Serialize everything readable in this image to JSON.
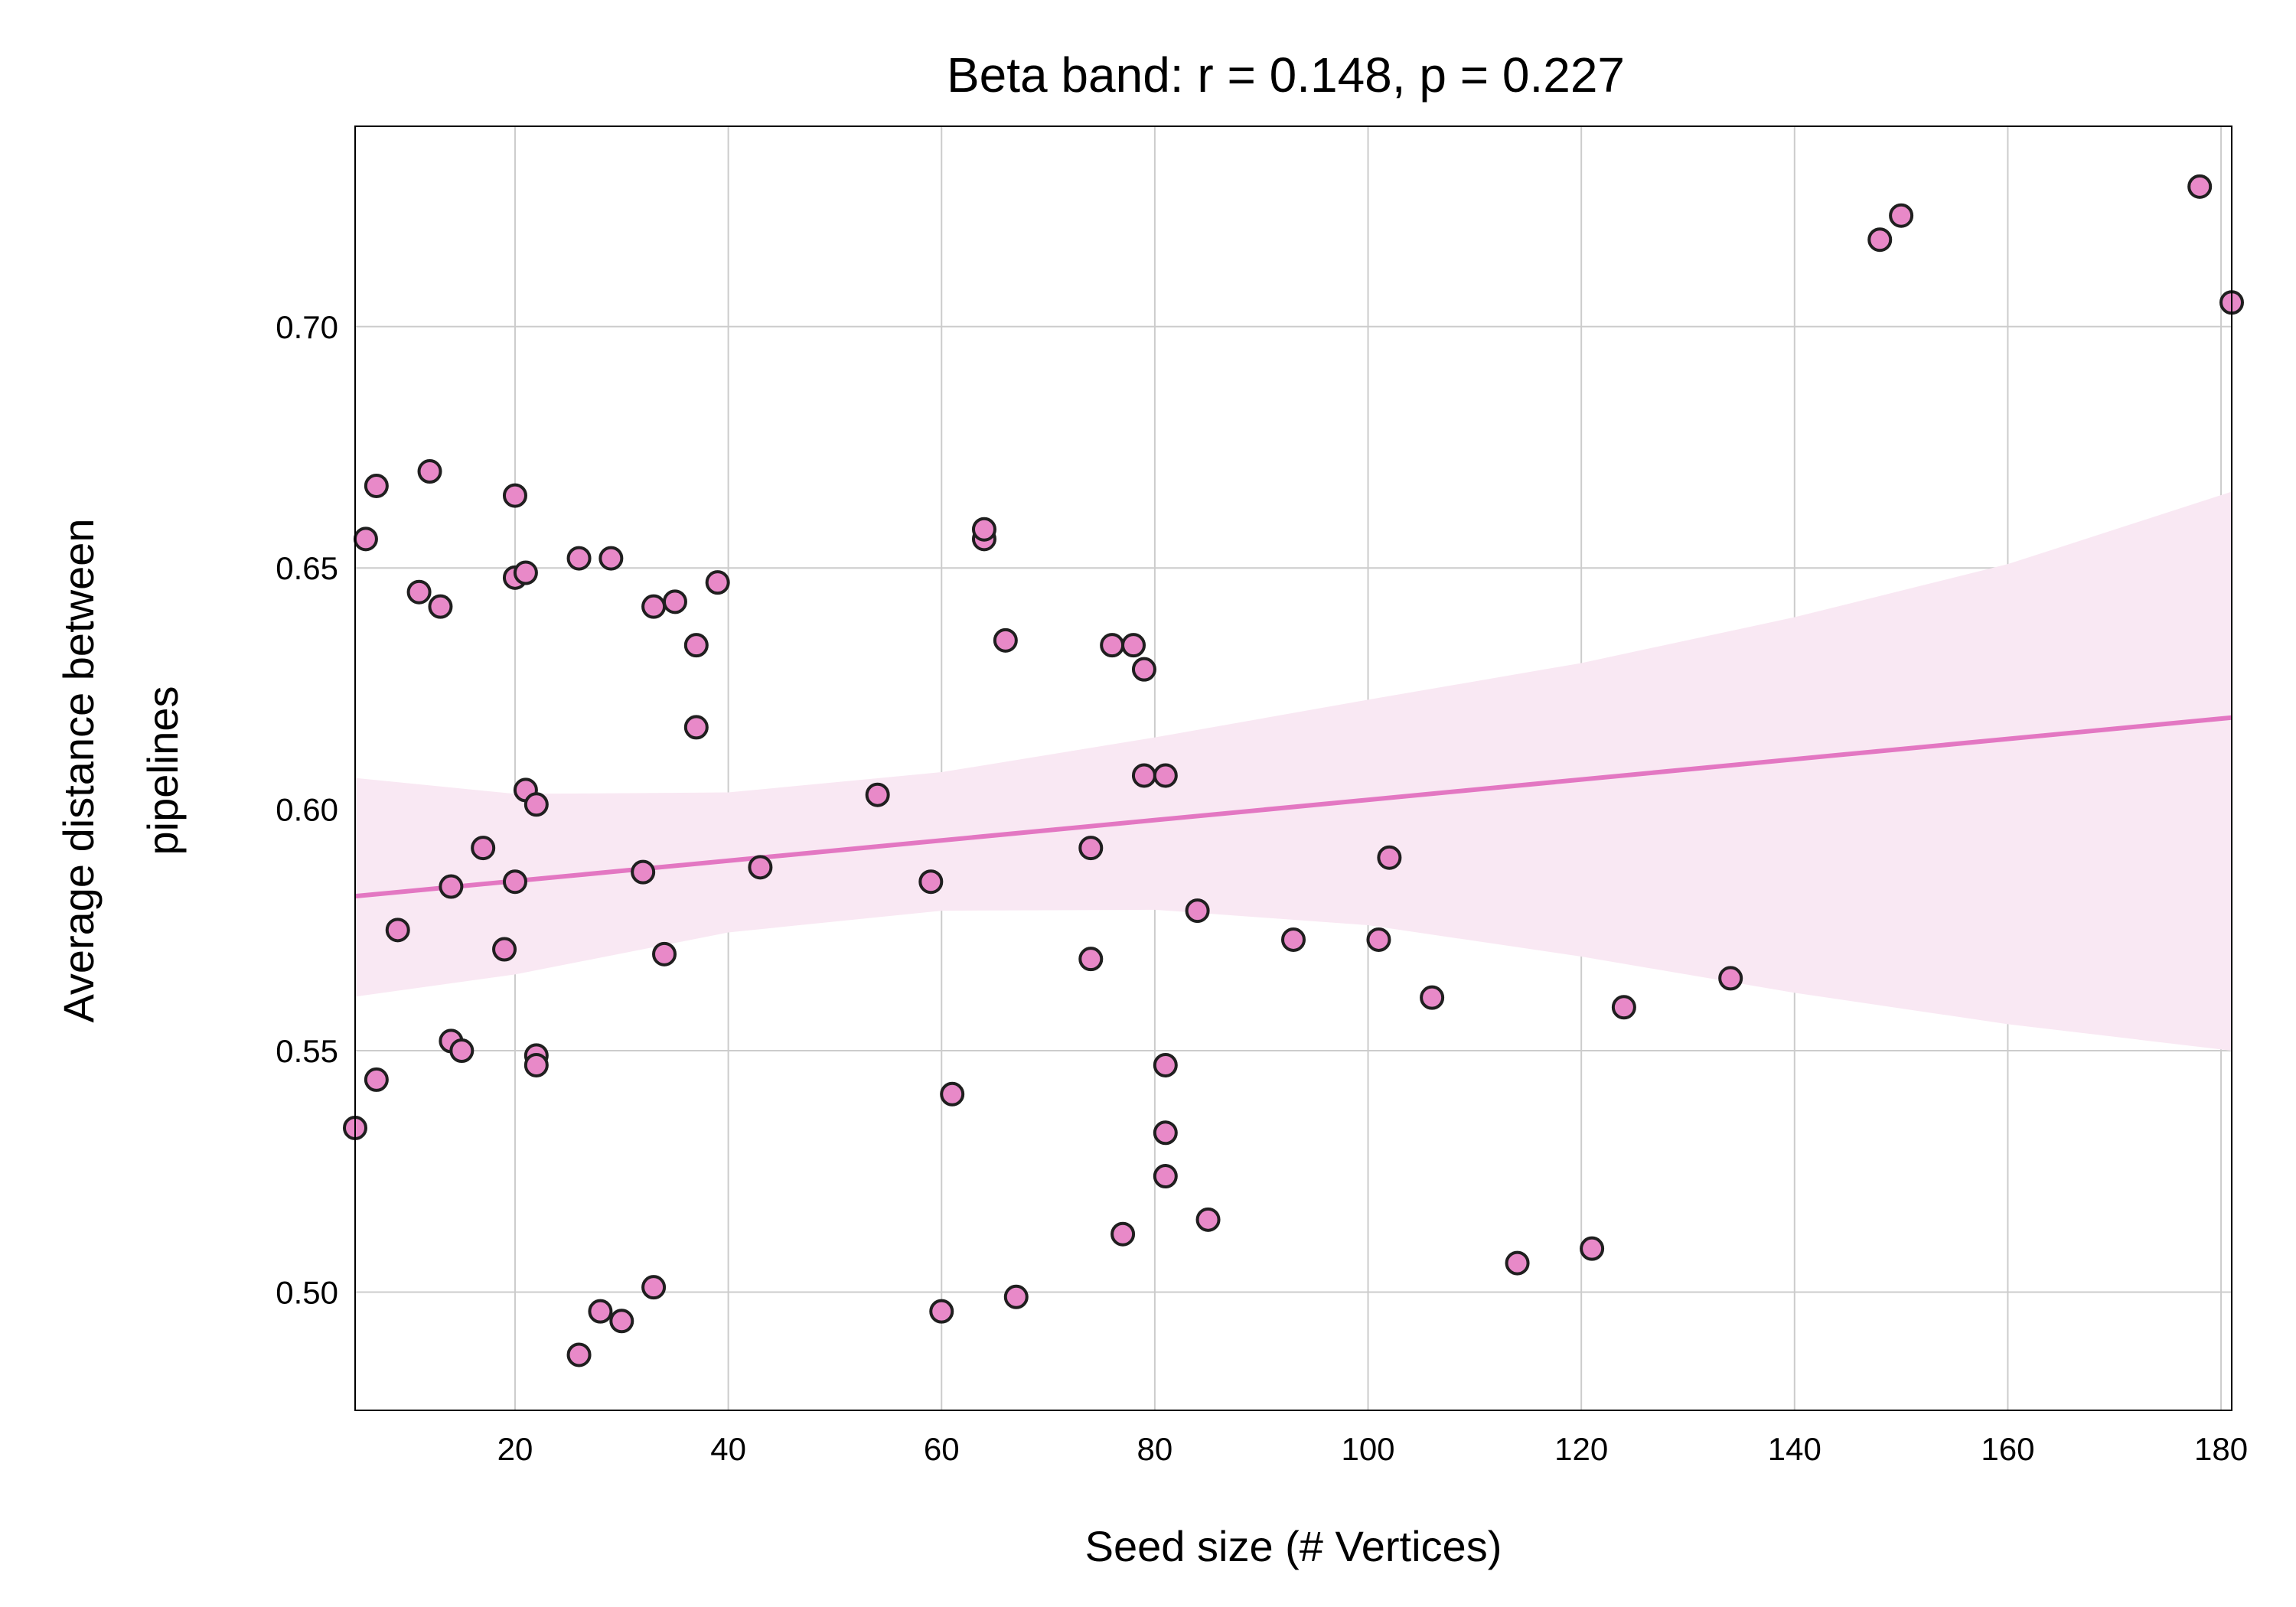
{
  "chart_data": {
    "type": "scatter",
    "title": "Beta band: r = 0.148, p = 0.227",
    "xlabel": "Seed size (# Vertices)",
    "ylabel_lines": [
      "Average distance between",
      "pipelines"
    ],
    "xlim": [
      5,
      181
    ],
    "ylim": [
      0.4755,
      0.7415
    ],
    "xticks": [
      20,
      40,
      60,
      80,
      100,
      120,
      140,
      160,
      180
    ],
    "yticks": [
      0.5,
      0.55,
      0.6,
      0.65,
      0.7
    ],
    "ytick_labels": [
      "0.50",
      "0.55",
      "0.60",
      "0.65",
      "0.70"
    ],
    "grid": true,
    "colors": {
      "marker_fill": "#e889c8",
      "marker_edge": "#1f1f1f",
      "fit_line": "#e377c2",
      "ci_band": "#f9e8f3"
    },
    "regression": {
      "x": [
        5,
        181
      ],
      "y": [
        0.582,
        0.619
      ],
      "ci_x": [
        5,
        20,
        40,
        60,
        80,
        100,
        120,
        140,
        160,
        181
      ],
      "ci_upper": [
        0.6065,
        0.6032,
        0.6035,
        0.6077,
        0.6149,
        0.6227,
        0.6303,
        0.6398,
        0.6508,
        0.6658
      ],
      "ci_lower": [
        0.5612,
        0.5658,
        0.5745,
        0.579,
        0.5792,
        0.576,
        0.5695,
        0.562,
        0.5555,
        0.55
      ]
    },
    "series": [
      {
        "points": [
          [
            5,
            0.534
          ],
          [
            6,
            0.656
          ],
          [
            7,
            0.544
          ],
          [
            7,
            0.667
          ],
          [
            9,
            0.575
          ],
          [
            11,
            0.645
          ],
          [
            12,
            0.67
          ],
          [
            13,
            0.642
          ],
          [
            14,
            0.584
          ],
          [
            14,
            0.552
          ],
          [
            15,
            0.55
          ],
          [
            17,
            0.592
          ],
          [
            19,
            0.571
          ],
          [
            20,
            0.585
          ],
          [
            20,
            0.648
          ],
          [
            20,
            0.665
          ],
          [
            21,
            0.604
          ],
          [
            21,
            0.649
          ],
          [
            22,
            0.601
          ],
          [
            22,
            0.549
          ],
          [
            22,
            0.547
          ],
          [
            26,
            0.652
          ],
          [
            26,
            0.487
          ],
          [
            28,
            0.496
          ],
          [
            29,
            0.652
          ],
          [
            30,
            0.494
          ],
          [
            32,
            0.587
          ],
          [
            33,
            0.642
          ],
          [
            33,
            0.501
          ],
          [
            34,
            0.57
          ],
          [
            35,
            0.643
          ],
          [
            37,
            0.634
          ],
          [
            37,
            0.617
          ],
          [
            39,
            0.647
          ],
          [
            43,
            0.588
          ],
          [
            54,
            0.603
          ],
          [
            59,
            0.585
          ],
          [
            60,
            0.496
          ],
          [
            61,
            0.541
          ],
          [
            64,
            0.656
          ],
          [
            64,
            0.658
          ],
          [
            66,
            0.635
          ],
          [
            67,
            0.499
          ],
          [
            74,
            0.592
          ],
          [
            74,
            0.569
          ],
          [
            76,
            0.634
          ],
          [
            77,
            0.512
          ],
          [
            78,
            0.634
          ],
          [
            79,
            0.629
          ],
          [
            79,
            0.607
          ],
          [
            81,
            0.607
          ],
          [
            81,
            0.547
          ],
          [
            81,
            0.533
          ],
          [
            81,
            0.524
          ],
          [
            84,
            0.579
          ],
          [
            85,
            0.515
          ],
          [
            93,
            0.573
          ],
          [
            101,
            0.573
          ],
          [
            102,
            0.59
          ],
          [
            106,
            0.561
          ],
          [
            114,
            0.506
          ],
          [
            121,
            0.509
          ],
          [
            124,
            0.559
          ],
          [
            134,
            0.565
          ],
          [
            148,
            0.718
          ],
          [
            150,
            0.723
          ],
          [
            178,
            0.729
          ],
          [
            181,
            0.705
          ]
        ]
      }
    ]
  }
}
